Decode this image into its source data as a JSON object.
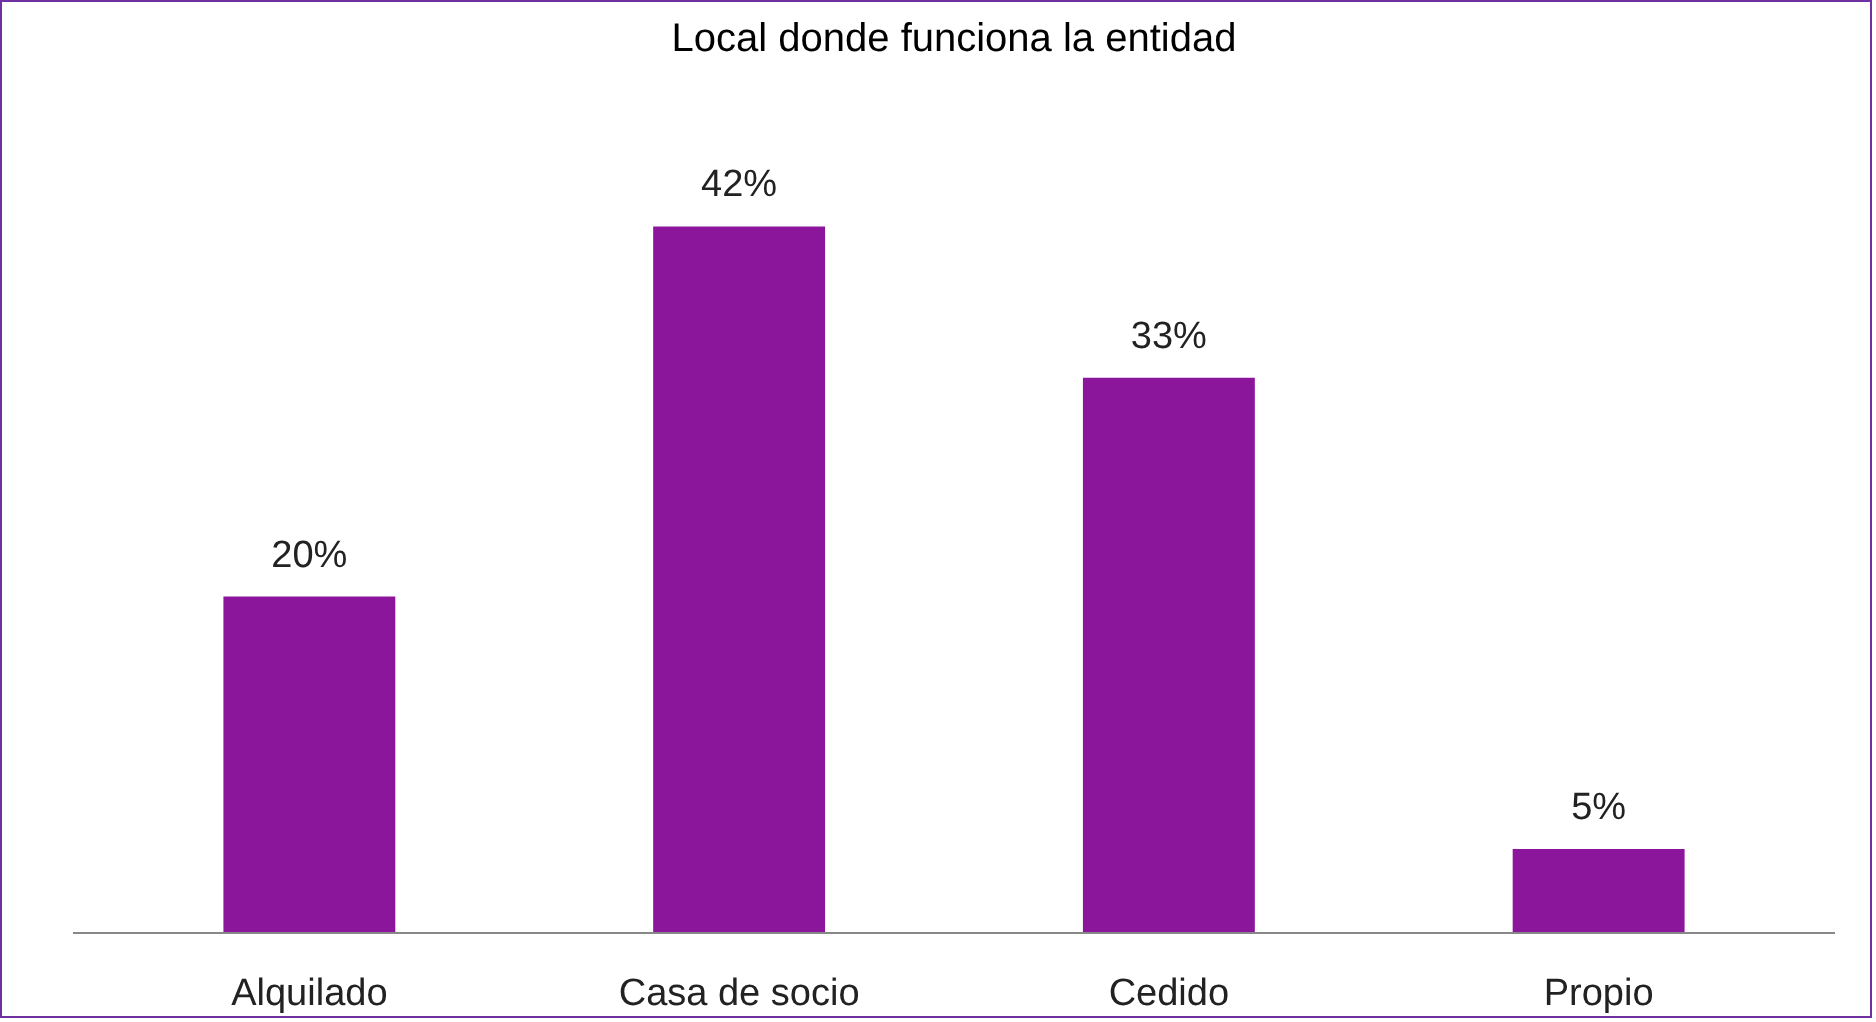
{
  "chart_data": {
    "type": "bar",
    "title": "Local donde funciona la entidad",
    "categories": [
      "Alquilado",
      "Casa de socio",
      "Cedido",
      "Propio"
    ],
    "values": [
      20,
      42,
      33,
      5
    ],
    "value_labels": [
      "20%",
      "42%",
      "33%",
      "5%"
    ],
    "color": "#8b169b",
    "grid": false
  }
}
